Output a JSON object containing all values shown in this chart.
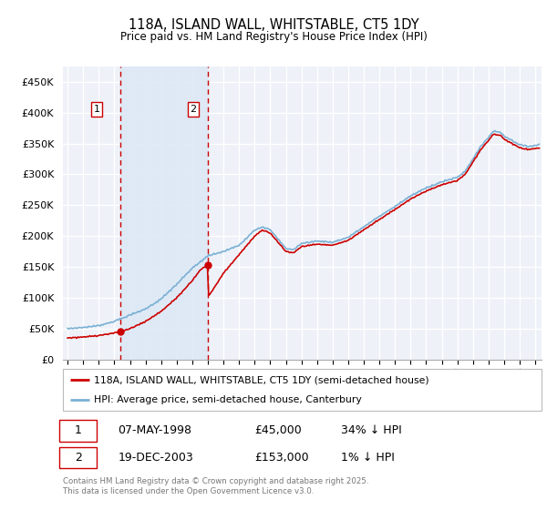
{
  "title": "118A, ISLAND WALL, WHITSTABLE, CT5 1DY",
  "subtitle": "Price paid vs. HM Land Registry's House Price Index (HPI)",
  "ylim": [
    0,
    475000
  ],
  "yticks": [
    0,
    50000,
    100000,
    150000,
    200000,
    250000,
    300000,
    350000,
    400000,
    450000
  ],
  "ytick_labels": [
    "£0",
    "£50K",
    "£100K",
    "£150K",
    "£200K",
    "£250K",
    "£300K",
    "£350K",
    "£400K",
    "£450K"
  ],
  "background_color": "#ffffff",
  "plot_bg_color": "#eef2f8",
  "grid_color": "#ffffff",
  "legend_entries": [
    "118A, ISLAND WALL, WHITSTABLE, CT5 1DY (semi-detached house)",
    "HPI: Average price, semi-detached house, Canterbury"
  ],
  "legend_colors": [
    "#cc0000",
    "#7ab0d4"
  ],
  "sale1_date_label": "07-MAY-1998",
  "sale1_price_label": "£45,000",
  "sale1_hpi_label": "34% ↓ HPI",
  "sale2_date_label": "19-DEC-2003",
  "sale2_price_label": "£153,000",
  "sale2_hpi_label": "1% ↓ HPI",
  "copyright_text": "Contains HM Land Registry data © Crown copyright and database right 2025.\nThis data is licensed under the Open Government Licence v3.0.",
  "sale1_color": "#cc0000",
  "sale2_color": "#cc0000",
  "vline_color": "#cc0000",
  "shade_color": "#dce8f5",
  "hpi_line_color": "#7ab0d4",
  "price_line_color": "#cc0000",
  "sale1_x": 1998.36,
  "sale2_x": 2003.97,
  "sale1_y": 45000,
  "sale2_y": 153000,
  "xmin": 1994.7,
  "xmax": 2025.4
}
